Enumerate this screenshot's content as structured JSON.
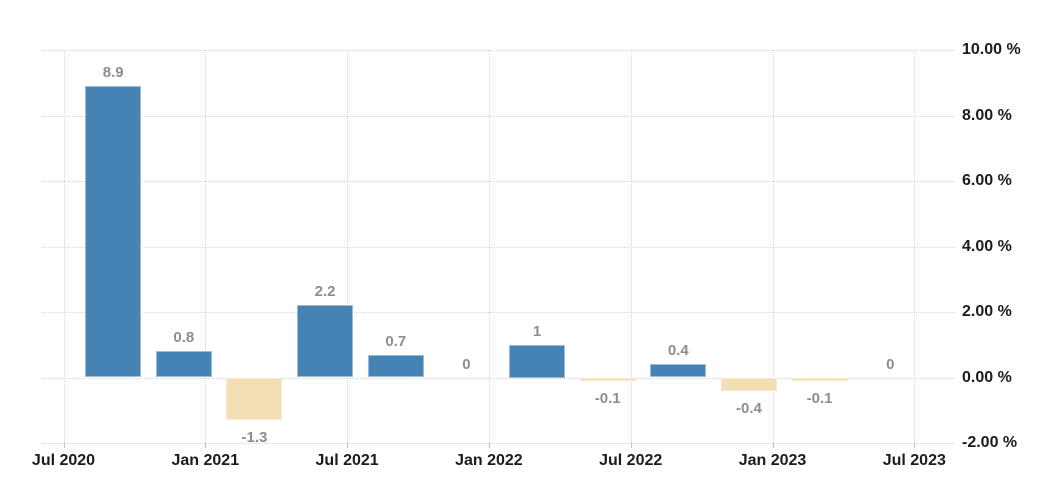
{
  "chart_data": {
    "type": "bar",
    "title": "",
    "categories": [
      "2020-Q3",
      "2020-Q4",
      "2021-Q1",
      "2021-Q2",
      "2021-Q3",
      "2021-Q4",
      "2022-Q1",
      "2022-Q2",
      "2022-Q3",
      "2022-Q4",
      "2023-Q1",
      "2023-Q2"
    ],
    "values": [
      8.9,
      0.8,
      -1.3,
      2.2,
      0.7,
      0,
      1,
      -0.1,
      0.4,
      -0.4,
      -0.1,
      0
    ],
    "bar_labels": [
      "8.9",
      "0.8",
      "-1.3",
      "2.2",
      "0.7",
      "0",
      "1",
      "-0.1",
      "0.4",
      "-0.4",
      "-0.1",
      "0"
    ],
    "x_tick_labels": [
      "Jul 2020",
      "Jan 2021",
      "Jul 2021",
      "Jan 2022",
      "Jul 2022",
      "Jan 2023",
      "Jul 2023"
    ],
    "y_tick_labels": [
      "10.00 %",
      "8.00 %",
      "6.00 %",
      "4.00 %",
      "2.00 %",
      "0.00 %",
      "-2.00 %"
    ],
    "ylabel": "%",
    "xlabel": "",
    "ylim": [
      -2,
      10
    ],
    "y_tick_step": 2,
    "grid": "dotted",
    "legend_position": "none",
    "colors": {
      "positive_bar": "#4583b4",
      "negative_bar": "#f4dfb4",
      "grid_line": "#d6d6d6",
      "axis_text": "#1c1c1c",
      "bar_label_text": "#8d8d8d"
    }
  }
}
